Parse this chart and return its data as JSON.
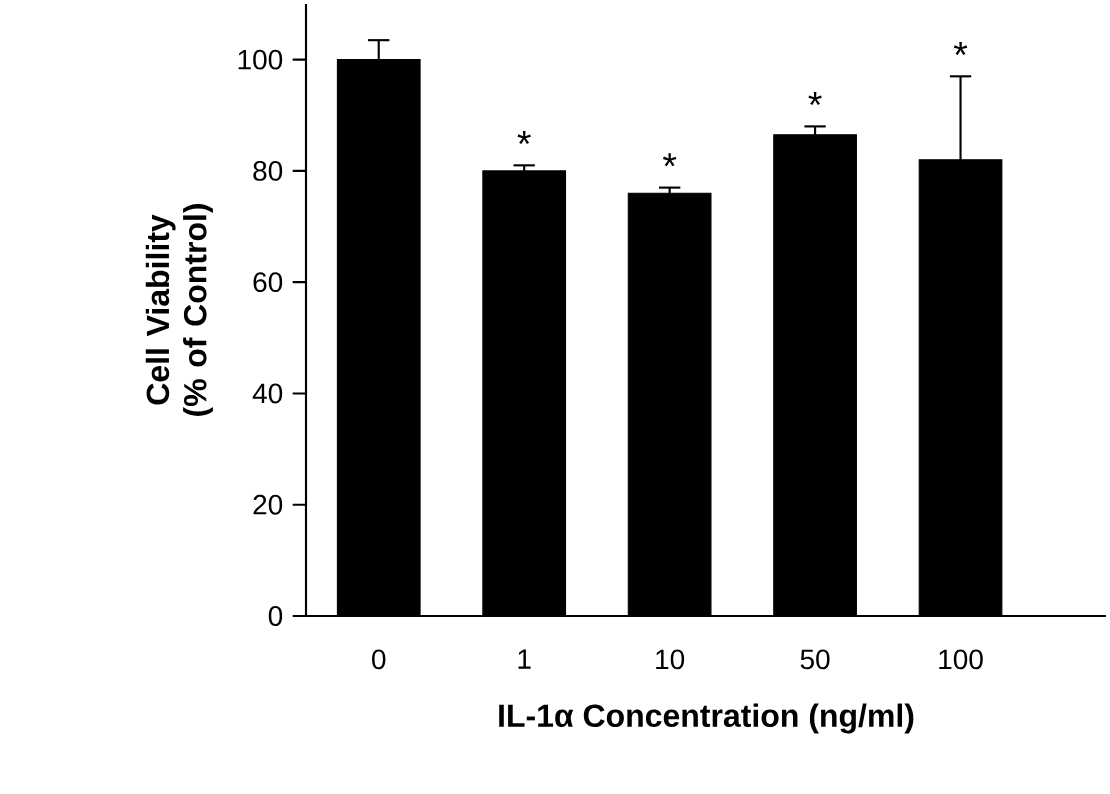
{
  "chart_data": {
    "type": "bar",
    "xlabel": "IL-1α Concentration (ng/ml)",
    "ylabel": "Cell Viability (% of Control)",
    "categories": [
      "0",
      "1",
      "10",
      "50",
      "100"
    ],
    "values": [
      100,
      80,
      76,
      86.5,
      82
    ],
    "errors": [
      3.5,
      1,
      1,
      1.5,
      15
    ],
    "color": "#000000",
    "ylim": [
      0,
      110
    ],
    "yticks": [
      0,
      20,
      40,
      60,
      80,
      100
    ],
    "annotations": [
      {
        "text": "*",
        "x": "1",
        "y": 82
      },
      {
        "text": "*",
        "x": "10",
        "y": 78
      },
      {
        "text": "*",
        "x": "50",
        "y": 89
      },
      {
        "text": "*",
        "x": "100",
        "y": 98
      }
    ]
  }
}
